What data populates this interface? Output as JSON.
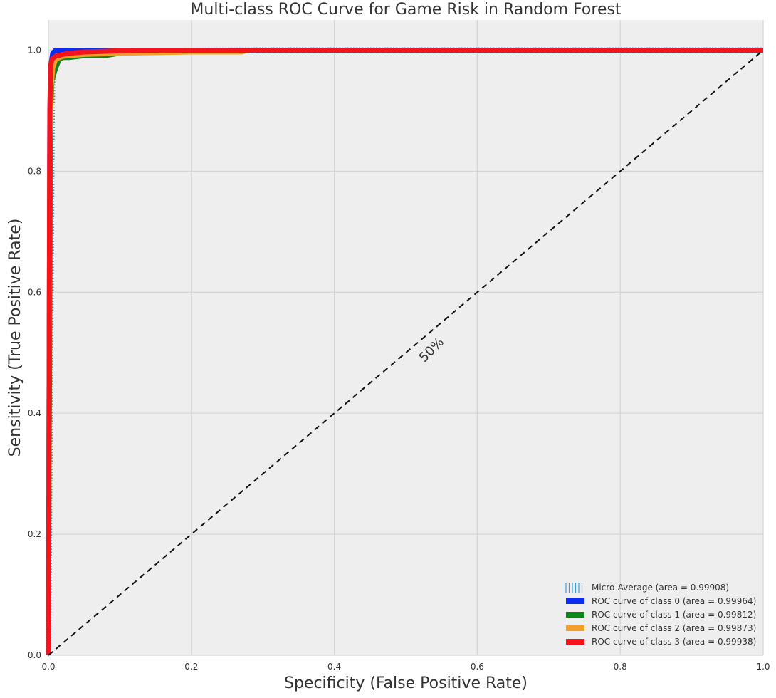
{
  "chart_data": {
    "type": "line",
    "title": "Multi-class ROC Curve for Game Risk in Random Forest",
    "xlabel": "Specificity (False Positive Rate)",
    "ylabel": "Sensitivity (True Positive Rate)",
    "xlim": [
      0.0,
      1.0
    ],
    "ylim": [
      0.0,
      1.05
    ],
    "x_ticks": [
      0.0,
      0.2,
      0.4,
      0.6,
      0.8,
      1.0
    ],
    "x_tick_labels": [
      "0.0",
      "0.2",
      "0.4",
      "0.6",
      "0.8",
      "1.0"
    ],
    "y_ticks": [
      0.0,
      0.2,
      0.4,
      0.6,
      0.8,
      1.0
    ],
    "y_tick_labels": [
      "0.0",
      "0.2",
      "0.4",
      "0.6",
      "0.8",
      "1.0"
    ],
    "grid": true,
    "background_color": "#eeeeee",
    "grid_color": "#d5d5d5",
    "legend_position": "lower-right",
    "annotation": {
      "text": "50%",
      "x": 0.54,
      "y": 0.5,
      "rotation_deg": -45
    },
    "reference_line": {
      "x": [
        0.0,
        1.0
      ],
      "y": [
        0.0,
        1.0
      ],
      "style": "dashed",
      "color": "#111111"
    },
    "series": [
      {
        "name": "Micro-Average (area = 0.99908)",
        "color": "#3a9ad9",
        "style": "hatched",
        "x": [
          0.0,
          0.003,
          0.005,
          0.006,
          0.008,
          0.012,
          0.02,
          0.05,
          0.1,
          0.3,
          0.6,
          1.0
        ],
        "y": [
          0.0,
          0.5,
          0.9,
          0.96,
          0.985,
          0.99,
          0.995,
          0.998,
          0.999,
          1.0,
          1.0,
          1.0
        ]
      },
      {
        "name": "ROC curve of class 0 (area = 0.99964)",
        "color": "#0c2cf2",
        "style": "solid",
        "x": [
          0.0,
          0.002,
          0.004,
          0.006,
          0.01,
          0.05,
          0.1,
          0.2,
          0.4,
          1.0
        ],
        "y": [
          0.0,
          0.9,
          0.98,
          0.995,
          1.0,
          1.0,
          1.0,
          1.0,
          1.0,
          1.0
        ]
      },
      {
        "name": "ROC curve of class 1 (area = 0.99812)",
        "color": "#11851b",
        "style": "solid",
        "x": [
          0.0,
          0.003,
          0.005,
          0.01,
          0.015,
          0.02,
          0.03,
          0.05,
          0.08,
          0.1,
          0.12,
          0.3,
          1.0
        ],
        "y": [
          0.0,
          0.9,
          0.95,
          0.97,
          0.985,
          0.988,
          0.988,
          0.991,
          0.991,
          0.995,
          1.0,
          1.0,
          1.0
        ]
      },
      {
        "name": "ROC curve of class 2 (area = 0.99873)",
        "color": "#f59e29",
        "style": "solid",
        "x": [
          0.0,
          0.002,
          0.004,
          0.006,
          0.01,
          0.02,
          0.05,
          0.1,
          0.2,
          0.27,
          0.28,
          1.0
        ],
        "y": [
          0.0,
          0.85,
          0.94,
          0.97,
          0.985,
          0.99,
          0.993,
          0.995,
          0.997,
          0.997,
          1.0,
          1.0
        ]
      },
      {
        "name": "ROC curve of class 3 (area = 0.99938)",
        "color": "#f5141e",
        "style": "solid",
        "x": [
          0.0,
          0.002,
          0.003,
          0.005,
          0.01,
          0.02,
          0.03,
          0.05,
          0.1,
          0.15,
          0.3,
          1.0
        ],
        "y": [
          0.0,
          0.9,
          0.975,
          0.985,
          0.99,
          0.993,
          0.995,
          0.997,
          0.999,
          1.0,
          1.0,
          1.0
        ]
      }
    ]
  }
}
